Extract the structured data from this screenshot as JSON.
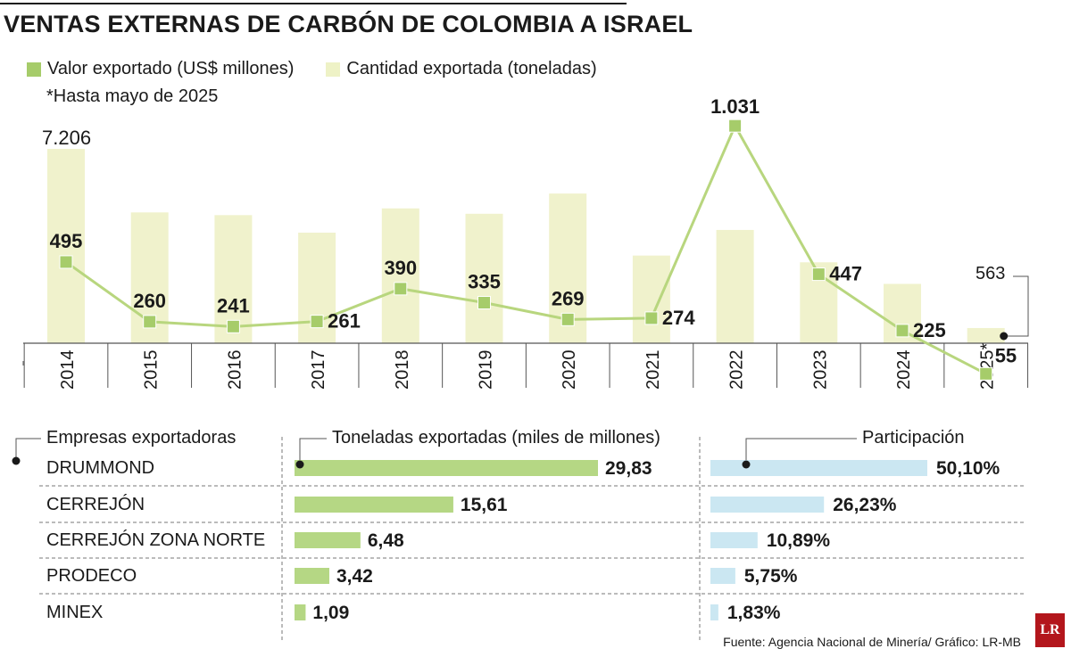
{
  "title": "VENTAS EXTERNAS DE CARBÓN DE COLOMBIA A ISRAEL",
  "note": "*Hasta mayo de 2025",
  "colors": {
    "bar": "#f0f2cc",
    "line": "#b8d67e",
    "marker": "#a6cc6a",
    "ton_bar": "#b5d784",
    "share_bar": "#cbe7f2",
    "text": "#1a1a1a"
  },
  "chart_data": [
    {
      "type": "bar+line",
      "categories": [
        "2014",
        "2015",
        "2016",
        "2017",
        "2018",
        "2019",
        "2020",
        "2021",
        "2022",
        "2023",
        "2024",
        "2025*"
      ],
      "series": [
        {
          "name": "Valor exportado (US$ millones)",
          "type": "line",
          "values": [
            495,
            260,
            241,
            261,
            390,
            335,
            269,
            274,
            1031,
            447,
            225,
            55
          ],
          "labels": [
            "495",
            "260",
            "241",
            "261",
            "390",
            "335",
            "269",
            "274",
            "1.031",
            "447",
            "225",
            "55"
          ]
        },
        {
          "name": "Cantidad exportada (toneladas)",
          "type": "bar",
          "values": [
            7206,
            4850,
            4750,
            4100,
            5000,
            4800,
            5550,
            3250,
            4200,
            3000,
            2200,
            563
          ],
          "labels": [
            "7.206",
            "",
            "",
            "",
            "",
            "",
            "",
            "",
            "",
            "",
            "",
            "563"
          ]
        }
      ],
      "legend": "top-left"
    },
    {
      "type": "table",
      "columns": [
        "Empresas exportadoras",
        "Toneladas exportadas (miles de millones)",
        "Participación"
      ],
      "rows": [
        {
          "company": "DRUMMOND",
          "tons": 29.83,
          "tons_label": "29,83",
          "share": 50.1,
          "share_label": "50,10%"
        },
        {
          "company": "CERREJÓN",
          "tons": 15.61,
          "tons_label": "15,61",
          "share": 26.23,
          "share_label": "26,23%"
        },
        {
          "company": "CERREJÓN ZONA NORTE",
          "tons": 6.48,
          "tons_label": "6,48",
          "share": 10.89,
          "share_label": "10,89%"
        },
        {
          "company": "PRODECO",
          "tons": 3.42,
          "tons_label": "3,42",
          "share": 5.75,
          "share_label": "5,75%"
        },
        {
          "company": "MINEX",
          "tons": 1.09,
          "tons_label": "1,09",
          "share": 1.83,
          "share_label": "1,83%"
        }
      ]
    }
  ],
  "source": "Fuente:  Agencia Nacional de Minería/ Gráfico: LR-MB",
  "logo_text": "LR"
}
